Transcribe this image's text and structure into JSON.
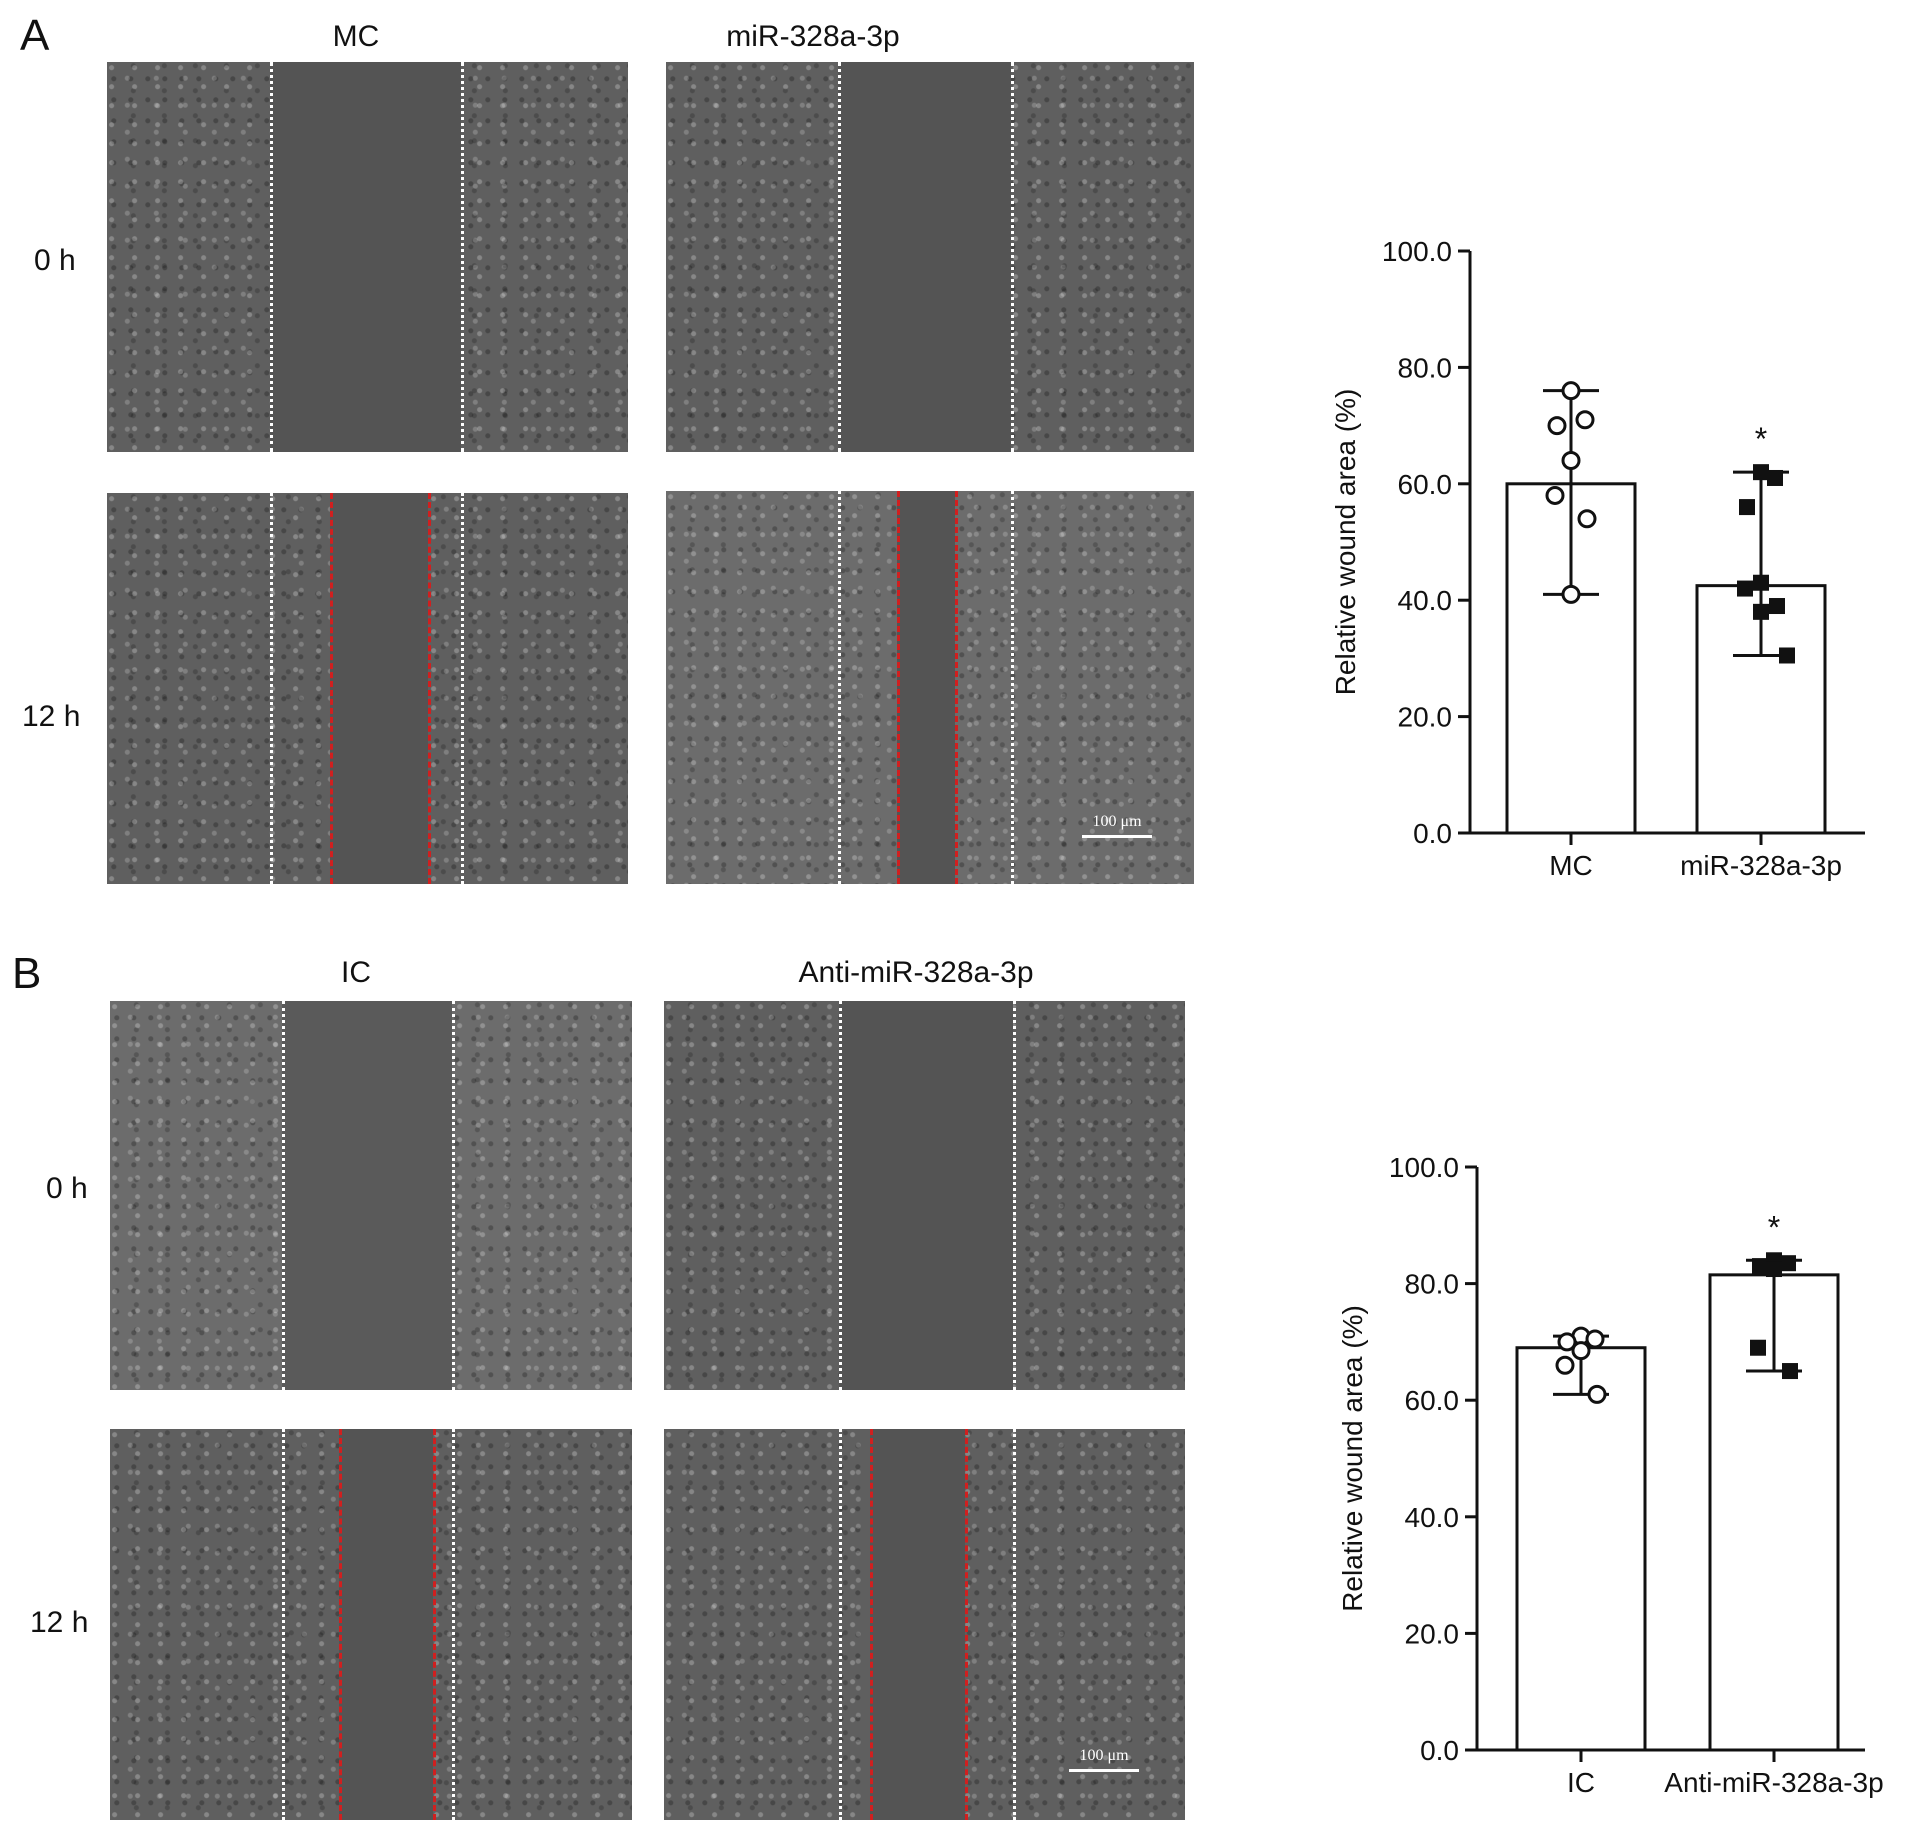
{
  "panels": [
    {
      "letter": "A",
      "columns": [
        "MC",
        "miR-328a-3p"
      ],
      "rows": [
        "0 h",
        "12 h"
      ],
      "scale_bar": "100 μm",
      "chart_data": {
        "type": "bar",
        "categories": [
          "MC",
          "miR-328a-3p"
        ],
        "values": [
          60.0,
          42.5
        ],
        "error_high": [
          76.0,
          62.0
        ],
        "error_low": [
          41.0,
          30.5
        ],
        "points": [
          [
            76,
            71,
            70,
            64,
            58,
            54,
            41
          ],
          [
            62,
            61,
            56,
            43,
            42,
            39,
            38,
            30.5
          ]
        ],
        "markers": [
          "open-circle",
          "filled-square"
        ],
        "significance": [
          "",
          "*"
        ],
        "ylabel": "Relative wound area (%)",
        "ylim": [
          0,
          100
        ],
        "yticks": [
          "0.0",
          "20.0",
          "40.0",
          "60.0",
          "80.0",
          "100.0"
        ]
      }
    },
    {
      "letter": "B",
      "columns": [
        "IC",
        "Anti-miR-328a-3p"
      ],
      "rows": [
        "0 h",
        "12 h"
      ],
      "scale_bar": "100 μm",
      "chart_data": {
        "type": "bar",
        "categories": [
          "IC",
          "Anti-miR-328a-3p"
        ],
        "values": [
          69.0,
          81.5
        ],
        "error_high": [
          71.0,
          84.0
        ],
        "error_low": [
          61.0,
          65.0
        ],
        "points": [
          [
            71,
            70.5,
            70,
            68.5,
            66,
            61
          ],
          [
            84,
            83.5,
            83,
            82.5,
            69,
            65
          ]
        ],
        "markers": [
          "open-circle",
          "filled-square"
        ],
        "significance": [
          "",
          "*"
        ],
        "ylabel": "Relative wound area (%)",
        "ylim": [
          0,
          100
        ],
        "yticks": [
          "0.0",
          "20.0",
          "40.0",
          "60.0",
          "80.0",
          "100.0"
        ]
      }
    }
  ]
}
